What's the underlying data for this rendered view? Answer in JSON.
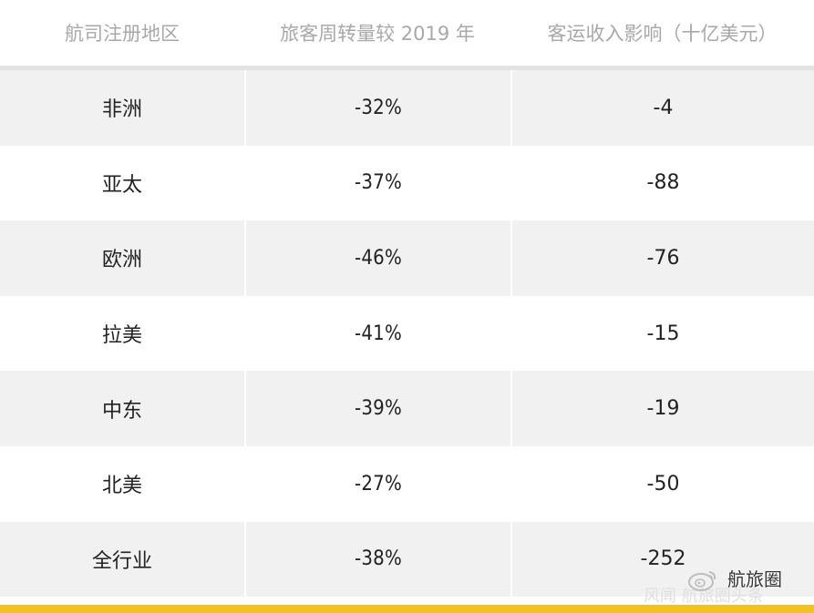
{
  "table": {
    "headers": [
      "航司注册地区",
      "旅客周转量较 2019 年",
      "客运收入影响（十亿美元）"
    ],
    "rows": [
      {
        "region": "非洲",
        "rpk_change": "-32%",
        "revenue_impact": "-4"
      },
      {
        "region": "亚太",
        "rpk_change": "-37%",
        "revenue_impact": "-88"
      },
      {
        "region": "欧洲",
        "rpk_change": "-46%",
        "revenue_impact": "-76"
      },
      {
        "region": "拉美",
        "rpk_change": "-41%",
        "revenue_impact": "-15"
      },
      {
        "region": "中东",
        "rpk_change": "-39%",
        "revenue_impact": "-19"
      },
      {
        "region": "北美",
        "rpk_change": "-27%",
        "revenue_impact": "-50"
      },
      {
        "region": "全行业",
        "rpk_change": "-38%",
        "revenue_impact": "-252"
      }
    ]
  },
  "watermark": {
    "main_text": "航旅圈",
    "faint_text": "风闻 航旅圈头条",
    "icon": "weibo-logo-icon"
  },
  "colors": {
    "header_text": "#a8a8a8",
    "row_shade": "#f1f1f1",
    "header_rule": "#e3e3e3",
    "accent_bar": "#f3c21d",
    "body_text": "#222222"
  }
}
